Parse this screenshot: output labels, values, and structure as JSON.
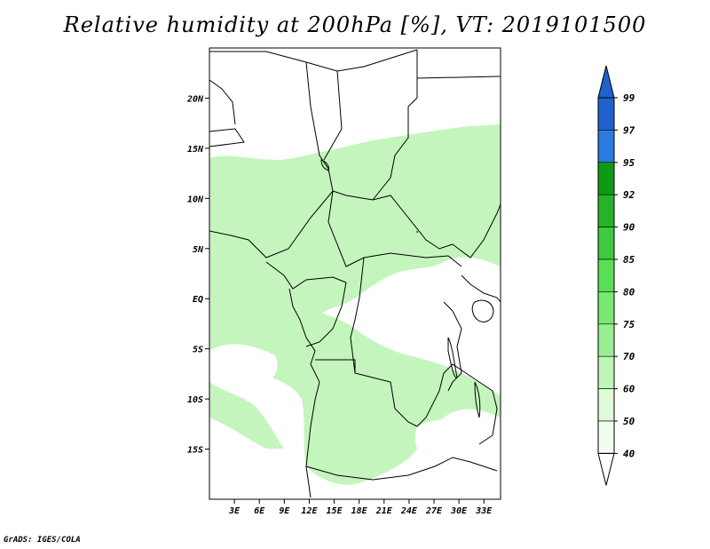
{
  "title": "Relative humidity at 200hPa [%], VT: 2019101500",
  "credit": "GrADS: IGES/COLA",
  "map": {
    "lon_labels": [
      "3E",
      "6E",
      "9E",
      "12E",
      "15E",
      "18E",
      "21E",
      "24E",
      "27E",
      "30E",
      "33E"
    ],
    "lon_values": [
      3,
      6,
      9,
      12,
      15,
      18,
      21,
      24,
      27,
      30,
      33
    ],
    "lat_labels": [
      "20N",
      "15N",
      "10N",
      "5N",
      "EQ",
      "5S",
      "10S",
      "15S"
    ],
    "lat_values": [
      20,
      15,
      10,
      5,
      0,
      -5,
      -10,
      -15
    ],
    "lon_range": [
      0,
      35
    ],
    "lat_range": [
      -20,
      25
    ]
  },
  "colorbar": {
    "labels": [
      "99",
      "97",
      "95",
      "92",
      "90",
      "85",
      "80",
      "75",
      "70",
      "60",
      "50",
      "40"
    ],
    "colors": {
      "99": "#1f62cc",
      "97": "#2a7ce0",
      "95": "#3fa0f0",
      "92": "#0f9a16",
      "90": "#26b32a",
      "85": "#3fc940",
      "80": "#59df56",
      "75": "#79e972",
      "70": "#9aef95",
      "60": "#bdf6b6",
      "50": "#ddfbd7",
      "40": "#f0fef0"
    }
  },
  "field_color": "#c4f5bd"
}
